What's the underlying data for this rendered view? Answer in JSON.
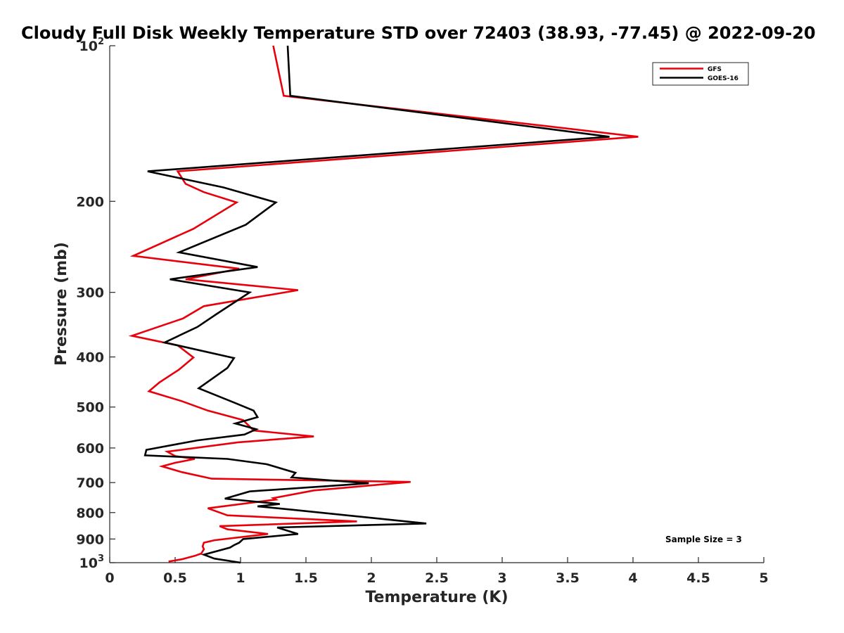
{
  "chart_data": {
    "type": "line",
    "title": "Cloudy Full Disk Weekly Temperature STD over 72403 (38.93, -77.45) @ 2022-09-20",
    "xlabel": "Temperature (K)",
    "ylabel": "Pressure (mb)",
    "xlim": [
      0,
      5
    ],
    "ylim": [
      100,
      1000
    ],
    "y_scale": "log",
    "y_reversed": true,
    "grid": false,
    "legend_position": "top-right",
    "x_ticks": [
      0,
      0.5,
      1,
      1.5,
      2,
      2.5,
      3,
      3.5,
      4,
      4.5,
      5
    ],
    "x_tick_labels": [
      "0",
      "0.5",
      "1",
      "1.5",
      "2",
      "2.5",
      "3",
      "3.5",
      "4",
      "4.5",
      "5"
    ],
    "y_ticks": [
      100,
      200,
      300,
      400,
      500,
      600,
      700,
      800,
      900,
      1000
    ],
    "y_tick_labels": [
      {
        "base": "10",
        "exp": "2"
      },
      {
        "base": "200",
        "exp": ""
      },
      {
        "base": "300",
        "exp": ""
      },
      {
        "base": "400",
        "exp": ""
      },
      {
        "base": "500",
        "exp": ""
      },
      {
        "base": "600",
        "exp": ""
      },
      {
        "base": "700",
        "exp": ""
      },
      {
        "base": "800",
        "exp": ""
      },
      {
        "base": "900",
        "exp": ""
      },
      {
        "base": "10",
        "exp": "3"
      }
    ],
    "annotation": "Sample Size = 3",
    "series": [
      {
        "name": "GFS",
        "color": "#e8000b",
        "points": [
          [
            1.25,
            100
          ],
          [
            1.33,
            125
          ],
          [
            4.04,
            150
          ],
          [
            0.52,
            175
          ],
          [
            0.58,
            185
          ],
          [
            0.72,
            192
          ],
          [
            0.97,
            201
          ],
          [
            0.64,
            226
          ],
          [
            0.18,
            255
          ],
          [
            0.99,
            270
          ],
          [
            0.58,
            283
          ],
          [
            1.44,
            297
          ],
          [
            0.72,
            319
          ],
          [
            0.56,
            337
          ],
          [
            0.17,
            364
          ],
          [
            0.52,
            380
          ],
          [
            0.64,
            401
          ],
          [
            0.53,
            423
          ],
          [
            0.38,
            448
          ],
          [
            0.3,
            466
          ],
          [
            0.55,
            487
          ],
          [
            0.75,
            508
          ],
          [
            1.02,
            530
          ],
          [
            1.1,
            555
          ],
          [
            1.56,
            570
          ],
          [
            0.98,
            585
          ],
          [
            0.44,
            610
          ],
          [
            0.5,
            622
          ],
          [
            0.65,
            630
          ],
          [
            0.5,
            641
          ],
          [
            0.4,
            651
          ],
          [
            0.55,
            668
          ],
          [
            0.78,
            688
          ],
          [
            2.3,
            698
          ],
          [
            1.56,
            725
          ],
          [
            1.25,
            750
          ],
          [
            1.27,
            755
          ],
          [
            0.75,
            785
          ],
          [
            0.9,
            810
          ],
          [
            1.89,
            832
          ],
          [
            0.84,
            850
          ],
          [
            0.9,
            862
          ],
          [
            1.21,
            880
          ],
          [
            0.8,
            905
          ],
          [
            0.72,
            915
          ],
          [
            0.71,
            930
          ],
          [
            0.72,
            942
          ],
          [
            0.7,
            960
          ],
          [
            0.65,
            970
          ],
          [
            0.55,
            985
          ],
          [
            0.45,
            995
          ]
        ]
      },
      {
        "name": "GOES-16",
        "color": "#000000",
        "points": [
          [
            1.36,
            100
          ],
          [
            1.38,
            125
          ],
          [
            3.82,
            150
          ],
          [
            0.29,
            175
          ],
          [
            0.87,
            188
          ],
          [
            1.27,
            201
          ],
          [
            1.04,
            222
          ],
          [
            0.53,
            251
          ],
          [
            1.13,
            268
          ],
          [
            0.46,
            283
          ],
          [
            1.07,
            300
          ],
          [
            0.82,
            330
          ],
          [
            0.67,
            350
          ],
          [
            0.42,
            375
          ],
          [
            0.95,
            402
          ],
          [
            0.9,
            420
          ],
          [
            0.68,
            460
          ],
          [
            0.95,
            490
          ],
          [
            1.1,
            508
          ],
          [
            1.13,
            523
          ],
          [
            0.96,
            538
          ],
          [
            1.12,
            552
          ],
          [
            1.03,
            565
          ],
          [
            0.67,
            580
          ],
          [
            0.28,
            605
          ],
          [
            0.27,
            620
          ],
          [
            0.9,
            630
          ],
          [
            1.2,
            645
          ],
          [
            1.42,
            670
          ],
          [
            1.39,
            684
          ],
          [
            1.98,
            702
          ],
          [
            1.07,
            728
          ],
          [
            0.88,
            752
          ],
          [
            1.3,
            770
          ],
          [
            1.13,
            778
          ],
          [
            1.4,
            790
          ],
          [
            2.42,
            840
          ],
          [
            1.28,
            855
          ],
          [
            1.44,
            880
          ],
          [
            1.02,
            900
          ],
          [
            0.99,
            915
          ],
          [
            0.95,
            925
          ],
          [
            0.92,
            935
          ],
          [
            0.72,
            965
          ],
          [
            0.8,
            982
          ],
          [
            1.0,
            1000
          ]
        ]
      }
    ]
  }
}
